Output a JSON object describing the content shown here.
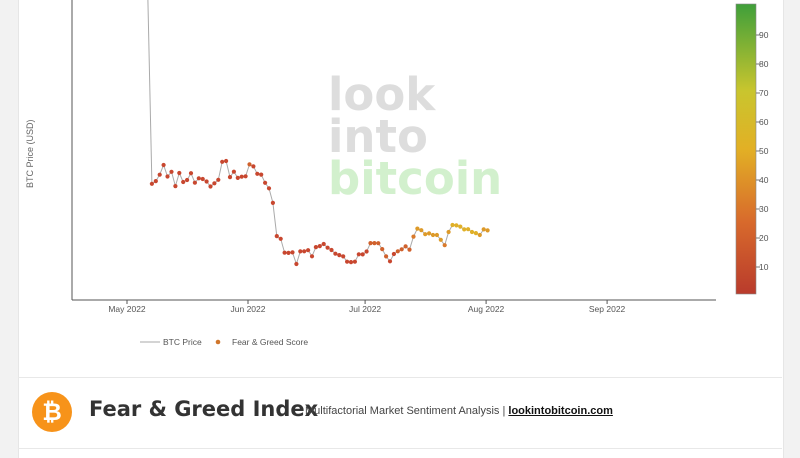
{
  "chart_data": {
    "type": "line",
    "ylabel": "BTC Price (USD)",
    "x_ticks": [
      "May 2022",
      "Jun 2022",
      "Jul 2022",
      "Aug 2022",
      "Sep 2022"
    ],
    "legend": {
      "placement": "bottom-left",
      "items": [
        "BTC Price",
        "Fear & Greed Score"
      ]
    },
    "colorbar": {
      "ticks": [
        10,
        20,
        30,
        40,
        50,
        60,
        70,
        80,
        90
      ],
      "range": [
        0,
        100
      ]
    },
    "watermark": [
      "look",
      "into",
      "bitcoin"
    ],
    "series": [
      {
        "name": "BTC Price",
        "x": [
          "2022-05-12",
          "2022-05-13",
          "2022-05-14",
          "2022-05-15",
          "2022-05-16",
          "2022-05-17",
          "2022-05-18",
          "2022-05-19",
          "2022-05-20",
          "2022-05-21",
          "2022-05-22",
          "2022-05-23",
          "2022-05-24",
          "2022-05-25",
          "2022-05-26",
          "2022-05-27",
          "2022-05-28",
          "2022-05-29",
          "2022-05-30",
          "2022-05-31",
          "2022-06-01",
          "2022-06-02",
          "2022-06-03",
          "2022-06-04",
          "2022-06-05",
          "2022-06-06",
          "2022-06-07",
          "2022-06-08",
          "2022-06-09",
          "2022-06-10",
          "2022-06-11",
          "2022-06-12",
          "2022-06-13",
          "2022-06-14",
          "2022-06-15",
          "2022-06-16",
          "2022-06-17",
          "2022-06-18",
          "2022-06-19",
          "2022-06-20",
          "2022-06-21",
          "2022-06-22",
          "2022-06-23",
          "2022-06-24",
          "2022-06-25",
          "2022-06-26",
          "2022-06-27",
          "2022-06-28",
          "2022-06-29",
          "2022-06-30",
          "2022-07-01",
          "2022-07-02",
          "2022-07-03",
          "2022-07-04",
          "2022-07-05",
          "2022-07-06",
          "2022-07-07",
          "2022-07-08",
          "2022-07-09",
          "2022-07-10",
          "2022-07-11",
          "2022-07-12",
          "2022-07-13",
          "2022-07-14",
          "2022-07-15",
          "2022-07-16",
          "2022-07-17",
          "2022-07-18",
          "2022-07-19",
          "2022-07-20",
          "2022-07-21",
          "2022-07-22",
          "2022-07-23",
          "2022-07-24",
          "2022-07-25",
          "2022-07-26",
          "2022-07-27",
          "2022-07-28",
          "2022-07-29",
          "2022-07-30",
          "2022-07-31",
          "2022-08-01",
          "2022-08-02",
          "2022-08-03",
          "2022-08-04",
          "2022-08-05",
          "2022-08-06"
        ],
        "y": [
          28966,
          29297,
          30087,
          31304,
          29872,
          30450,
          28680,
          30300,
          29181,
          29430,
          30280,
          29100,
          29650,
          29560,
          29247,
          28630,
          29030,
          29460,
          31700,
          31790,
          29800,
          30470,
          29700,
          29850,
          29900,
          31370,
          31130,
          30200,
          30100,
          29090,
          28400,
          26590,
          22460,
          22130,
          20400,
          20380,
          20440,
          19000,
          20560,
          20580,
          20710,
          19960,
          21100,
          21220,
          21480,
          21020,
          20740,
          20280,
          20100,
          19940,
          19280,
          19240,
          19290,
          20210,
          20190,
          20550,
          21600,
          21600,
          21580,
          20850,
          19950,
          19330,
          20240,
          20580,
          20830,
          21190,
          20790,
          22400,
          23400,
          23200,
          22700,
          22800,
          22600,
          22600,
          22000,
          21330,
          22970,
          23850,
          23800,
          23650,
          23300,
          23320,
          22980,
          22840,
          22600,
          23300,
          23170
        ],
        "color": "#aaaaaa"
      },
      {
        "name": "Fear & Greed Score",
        "values": [
          10,
          10,
          10,
          11,
          11,
          12,
          11,
          11,
          10,
          11,
          11,
          10,
          11,
          11,
          10,
          10,
          11,
          11,
          12,
          12,
          12,
          11,
          11,
          12,
          12,
          13,
          12,
          12,
          12,
          12,
          12,
          11,
          10,
          10,
          9,
          9,
          8,
          7,
          9,
          9,
          9,
          9,
          10,
          11,
          12,
          12,
          11,
          11,
          10,
          9,
          9,
          8,
          9,
          11,
          11,
          12,
          14,
          15,
          15,
          15,
          13,
          11,
          12,
          13,
          14,
          16,
          16,
          24,
          30,
          32,
          31,
          33,
          31,
          32,
          29,
          27,
          34,
          42,
          42,
          40,
          40,
          38,
          37,
          37,
          36,
          36,
          36
        ],
        "colors": [
          "#c8472f",
          "#d97a2b",
          "#e0b028",
          "#c8c82e",
          "#44a53c"
        ]
      }
    ]
  },
  "footer": {
    "title": "Fear & Greed Index",
    "subtitle": "Multifactorial Market Sentiment Analysis |",
    "link": "lookintobitcoin.com",
    "logo_symbol": "₿"
  }
}
